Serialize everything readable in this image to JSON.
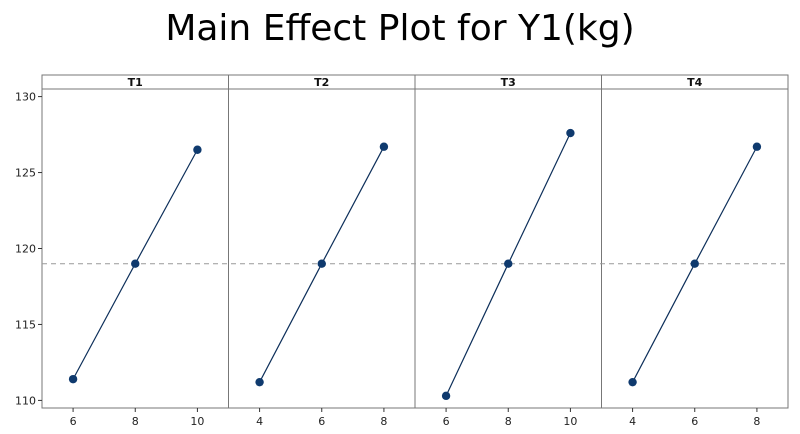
{
  "chart_data": {
    "type": "line",
    "title": "Main Effect Plot for Y1(kg)",
    "xlabel": "",
    "ylabel": "",
    "ylim": [
      109.5,
      130.5
    ],
    "yticks": [
      110,
      115,
      120,
      125,
      130
    ],
    "reference_line": 119.0,
    "colors": {
      "line": "#0d2f5a",
      "marker": "#0f3a6e",
      "reference": "#999999",
      "frame": "#777777"
    },
    "panels": [
      {
        "name": "T1",
        "x": [
          6,
          8,
          10
        ],
        "y": [
          111.4,
          119.0,
          126.5
        ],
        "xticks": [
          "6",
          "8",
          "10"
        ]
      },
      {
        "name": "T2",
        "x": [
          4,
          6,
          8
        ],
        "y": [
          111.2,
          119.0,
          126.7
        ],
        "xticks": [
          "4",
          "6",
          "8"
        ]
      },
      {
        "name": "T3",
        "x": [
          6,
          8,
          10
        ],
        "y": [
          110.3,
          119.0,
          127.6
        ],
        "xticks": [
          "6",
          "8",
          "10"
        ]
      },
      {
        "name": "T4",
        "x": [
          4,
          6,
          8
        ],
        "y": [
          111.2,
          119.0,
          126.7
        ],
        "xticks": [
          "4",
          "6",
          "8"
        ]
      }
    ]
  }
}
